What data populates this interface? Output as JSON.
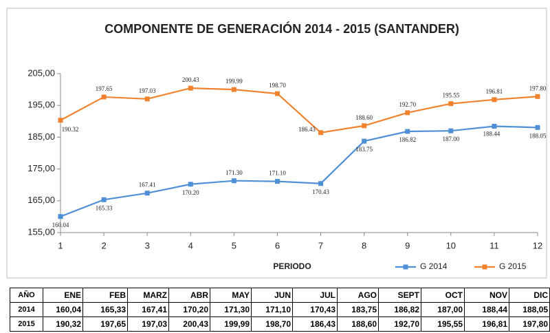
{
  "chart_data": {
    "type": "line",
    "title": "COMPONENTE DE GENERACIÓN  2014 - 2015 (SANTANDER)",
    "x_label": "PERIODO",
    "x": [
      1,
      2,
      3,
      4,
      5,
      6,
      7,
      8,
      9,
      10,
      11,
      12
    ],
    "xlim": [
      1,
      12
    ],
    "xticks": [
      1,
      2,
      3,
      4,
      5,
      6,
      7,
      8,
      9,
      10,
      11,
      12
    ],
    "ylim": [
      155,
      205
    ],
    "yticks": [
      {
        "value": 155,
        "label": "155,00"
      },
      {
        "value": 165,
        "label": "165,00"
      },
      {
        "value": 175,
        "label": "175,00"
      },
      {
        "value": 185,
        "label": "185,00"
      },
      {
        "value": 195,
        "label": "195,00"
      },
      {
        "value": 205,
        "label": "205,00"
      }
    ],
    "grid": false,
    "legend": "bottom-right",
    "series": [
      {
        "name": "G 2014",
        "color": "#4f8fd6",
        "values": [
          160.04,
          165.33,
          167.41,
          170.2,
          171.3,
          171.1,
          170.43,
          183.75,
          186.82,
          187,
          188.44,
          188.05
        ],
        "value_labels": [
          "160.04",
          "165.33",
          "167.41",
          "170.20",
          "171.30",
          "171.10",
          "170.43",
          "183.75",
          "186.82",
          "187.00",
          "188.44",
          "188.05"
        ]
      },
      {
        "name": "G 2015",
        "color": "#f0822e",
        "values": [
          190.32,
          197.65,
          197.03,
          200.43,
          199.99,
          198.7,
          186.43,
          188.6,
          192.7,
          195.55,
          196.81,
          197.8
        ],
        "value_labels": [
          "190.32",
          "197.65",
          "197.03",
          "200.43",
          "199.99",
          "198.70",
          "186.43",
          "188.60",
          "192.70",
          "195.55",
          "196.81",
          "197.80"
        ]
      }
    ]
  },
  "table": {
    "header": [
      "AÑO",
      "ENE",
      "FEB",
      "MARZ",
      "ABR",
      "MAY",
      "JUN",
      "JUL",
      "AGO",
      "SEPT",
      "OCT",
      "NOV",
      "DIC"
    ],
    "rows": [
      [
        "2014",
        "160,04",
        "165,33",
        "167,41",
        "170,20",
        "171,30",
        "171,10",
        "170,43",
        "183,75",
        "186,82",
        "187,00",
        "188,44",
        "188,05"
      ],
      [
        "2015",
        "190,32",
        "197,65",
        "197,03",
        "200,43",
        "199,99",
        "198,70",
        "186,43",
        "188,60",
        "192,70",
        "195,55",
        "196,81",
        "197,80"
      ]
    ]
  }
}
